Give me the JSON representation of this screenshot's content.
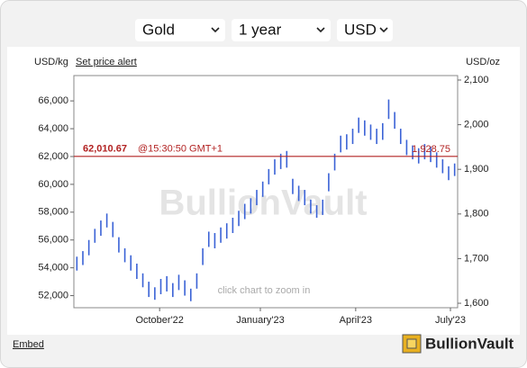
{
  "controls": {
    "metal": "Gold",
    "period": "1 year",
    "currency": "USD"
  },
  "header": {
    "left_unit": "USD/kg",
    "alert_link": "Set price alert",
    "right_unit": "USD/oz"
  },
  "watermark": "BullionVault",
  "zoom_hint": "click chart to zoom in",
  "footer": {
    "embed": "Embed",
    "logo": "BullionVault"
  },
  "chart_data": {
    "type": "range-bar",
    "grid": false,
    "xlim": [
      0,
      64
    ],
    "xticks": [
      {
        "value": 14.3,
        "label": "October'22"
      },
      {
        "value": 31.1,
        "label": "January'23"
      },
      {
        "value": 47,
        "label": "April'23"
      },
      {
        "value": 62.8,
        "label": "July'23"
      }
    ],
    "ylim": [
      51130,
      67820
    ],
    "yticks": [
      {
        "value": 52000,
        "label": "52,000"
      },
      {
        "value": 54000,
        "label": "54,000"
      },
      {
        "value": 56000,
        "label": "56,000"
      },
      {
        "value": 58000,
        "label": "58,000"
      },
      {
        "value": 60000,
        "label": "60,000"
      },
      {
        "value": 62000,
        "label": "62,000"
      },
      {
        "value": 64000,
        "label": "64,000"
      },
      {
        "value": 66000,
        "label": "66,000"
      }
    ],
    "y2lim": [
      1590,
      2110
    ],
    "y2ticks": [
      {
        "value": 1600,
        "label": "1,600"
      },
      {
        "value": 1700,
        "label": "1,700"
      },
      {
        "value": 1800,
        "label": "1,800"
      },
      {
        "value": 1900,
        "label": "1,900"
      },
      {
        "value": 2000,
        "label": "2,000"
      },
      {
        "value": 2100,
        "label": "2,100"
      }
    ],
    "series": [
      {
        "color": "#3a62d6",
        "high": [
          54800,
          55200,
          56000,
          56800,
          57400,
          57900,
          57300,
          56200,
          55400,
          54900,
          54300,
          53600,
          53000,
          52600,
          53200,
          53400,
          52900,
          53500,
          53100,
          52500,
          53600,
          55400,
          56600,
          56500,
          56900,
          57200,
          57600,
          58100,
          58600,
          59000,
          59600,
          60200,
          61100,
          61800,
          62200,
          62400,
          60400,
          59900,
          59600,
          58900,
          58500,
          58900,
          60800,
          62200,
          63500,
          63600,
          64000,
          64800,
          64600,
          64300,
          64000,
          64400,
          66100,
          65200,
          64000,
          63200,
          62800,
          62600,
          62900,
          62700,
          62300,
          61800,
          61300,
          61500
        ],
        "low": [
          53800,
          54200,
          54900,
          55800,
          56300,
          56900,
          56200,
          55100,
          54400,
          53800,
          53200,
          52600,
          51900,
          51700,
          52100,
          52300,
          51900,
          52400,
          52000,
          51600,
          52500,
          54200,
          55500,
          55400,
          55800,
          56100,
          56500,
          57000,
          57500,
          57900,
          58500,
          59100,
          60000,
          60700,
          61100,
          61200,
          59300,
          58800,
          58500,
          57900,
          57600,
          57800,
          59500,
          61000,
          62300,
          62500,
          62900,
          63700,
          63500,
          63200,
          62900,
          63200,
          64700,
          64000,
          62900,
          62100,
          61800,
          61500,
          61800,
          61600,
          61200,
          60800,
          60300,
          60600
        ]
      }
    ],
    "price_line": {
      "value": 62010.67,
      "label": "62,010.67",
      "time": "@15:30:50 GMT+1",
      "value_oz": 1928.75,
      "label_oz": "1,928.75",
      "color": "#b22222"
    }
  }
}
